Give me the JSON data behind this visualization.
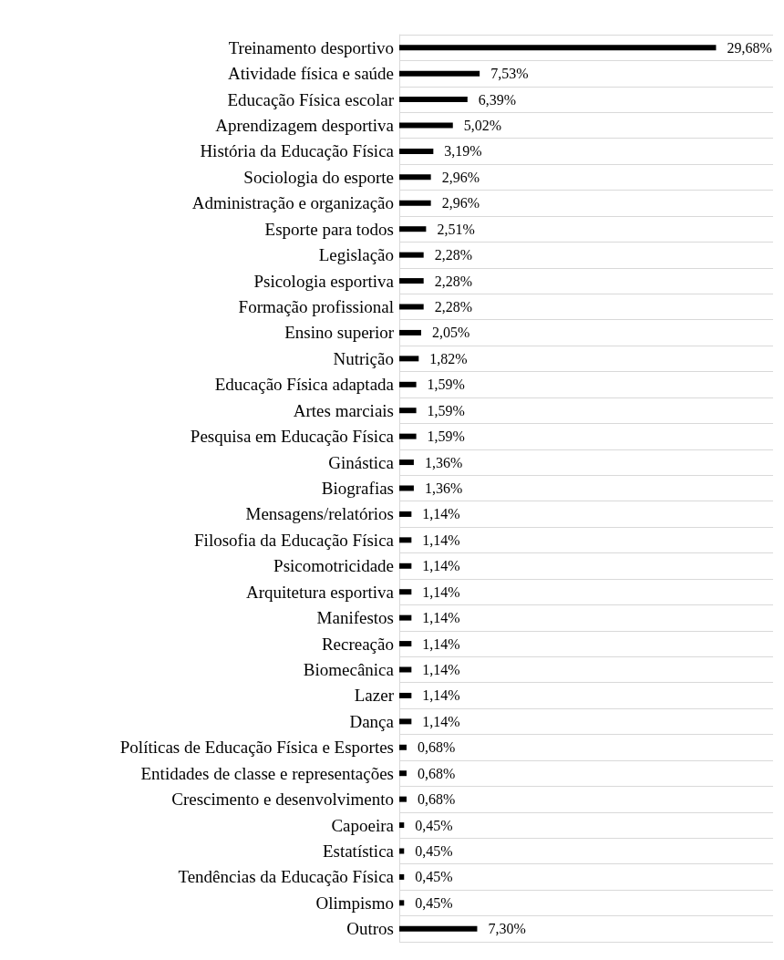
{
  "chart_data": {
    "type": "bar",
    "orientation": "horizontal",
    "color": "#000000",
    "grid": "y",
    "categories": [
      "Treinamento desportivo",
      "Atividade física e saúde",
      "Educação Física escolar",
      "Aprendizagem desportiva",
      "História da Educação Física",
      "Sociologia do esporte",
      "Administração e organização",
      "Esporte para todos",
      "Legislação",
      "Psicologia esportiva",
      "Formação profissional",
      "Ensino superior",
      "Nutrição",
      "Educação Física adaptada",
      "Artes marciais",
      "Pesquisa em Educação Física",
      "Ginástica",
      "Biografias",
      "Mensagens/relatórios",
      "Filosofia da Educação Física",
      "Psicomotricidade",
      "Arquitetura esportiva",
      "Manifestos",
      "Recreação",
      "Biomecânica",
      "Lazer",
      "Dança",
      "Políticas de Educação Física e Esportes",
      "Entidades de classe e representações",
      "Crescimento e desenvolvimento",
      "Capoeira",
      "Estatística",
      "Tendências da Educação Física",
      "Olimpismo",
      "Outros"
    ],
    "values": [
      29.68,
      7.53,
      6.39,
      5.02,
      3.19,
      2.96,
      2.96,
      2.51,
      2.28,
      2.28,
      2.28,
      2.05,
      1.82,
      1.59,
      1.59,
      1.59,
      1.36,
      1.36,
      1.14,
      1.14,
      1.14,
      1.14,
      1.14,
      1.14,
      1.14,
      1.14,
      1.14,
      0.68,
      0.68,
      0.68,
      0.45,
      0.45,
      0.45,
      0.45,
      7.3
    ],
    "value_labels": [
      "29,68%",
      "7,53%",
      "6,39%",
      "5,02%",
      "3,19%",
      "2,96%",
      "2,96%",
      "2,51%",
      "2,28%",
      "2,28%",
      "2,28%",
      "2,05%",
      "1,82%",
      "1,59%",
      "1,59%",
      "1,59%",
      "1,36%",
      "1,36%",
      "1,14%",
      "1,14%",
      "1,14%",
      "1,14%",
      "1,14%",
      "1,14%",
      "1,14%",
      "1,14%",
      "1,14%",
      "0,68%",
      "0,68%",
      "0,68%",
      "0,45%",
      "0,45%",
      "0,45%",
      "0,45%",
      "7,30%"
    ]
  }
}
